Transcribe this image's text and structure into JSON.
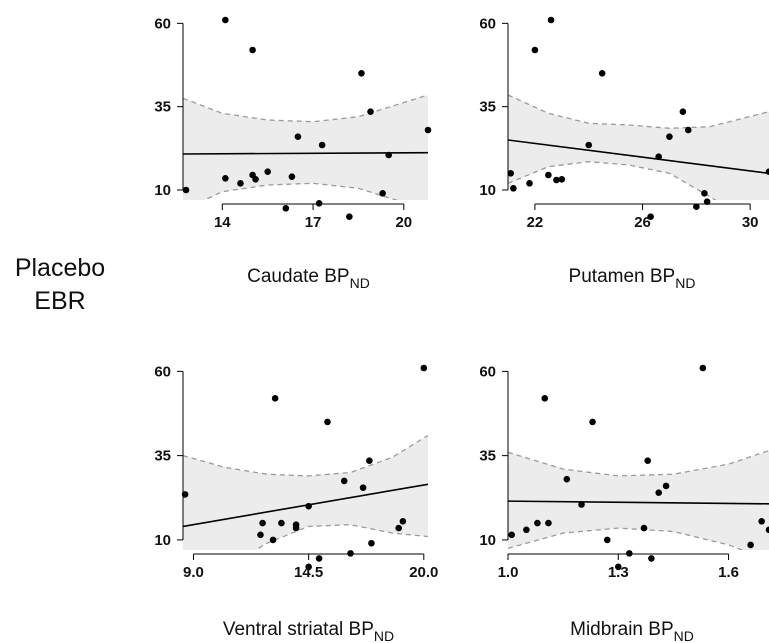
{
  "figure": {
    "y_label_line1": "Placebo",
    "y_label_line2": "EBR",
    "band_color": "#ececec",
    "band_edge_color": "#9a9a9a",
    "point_color": "#000000",
    "line_color": "#000000"
  },
  "chart_data": [
    {
      "type": "scatter",
      "xlabel_main": "Caudate BP",
      "xlabel_sub": "ND",
      "xlim": [
        12.7,
        20.8
      ],
      "ylim": [
        7,
        61
      ],
      "xticks": [
        14,
        17,
        20
      ],
      "yticks": [
        10,
        35,
        60
      ],
      "xtick_labels": [
        "14",
        "17",
        "20"
      ],
      "ytick_labels": [
        "10",
        "35",
        "60"
      ],
      "regression": [
        [
          12.7,
          20.8
        ],
        [
          20.8,
          21.2
        ]
      ],
      "ci_upper": [
        [
          12.7,
          37.5
        ],
        [
          14.0,
          33.0
        ],
        [
          15.5,
          31.0
        ],
        [
          17.0,
          30.5
        ],
        [
          18.5,
          32.0
        ],
        [
          20.8,
          38.5
        ]
      ],
      "ci_lower": [
        [
          12.7,
          4.0
        ],
        [
          14.0,
          9.5
        ],
        [
          15.5,
          11.5
        ],
        [
          17.0,
          12.0
        ],
        [
          18.5,
          10.5
        ],
        [
          20.8,
          4.0
        ]
      ],
      "points": [
        [
          12.8,
          10
        ],
        [
          14.1,
          61
        ],
        [
          14.1,
          13.5
        ],
        [
          14.6,
          12
        ],
        [
          15.0,
          52
        ],
        [
          15.0,
          14.5
        ],
        [
          15.1,
          13.2
        ],
        [
          15.5,
          15.5
        ],
        [
          16.1,
          4.5
        ],
        [
          16.3,
          14
        ],
        [
          16.5,
          26
        ],
        [
          17.2,
          6
        ],
        [
          17.3,
          23.5
        ],
        [
          18.2,
          2
        ],
        [
          18.6,
          45
        ],
        [
          18.9,
          33.5
        ],
        [
          19.3,
          9
        ],
        [
          19.5,
          20.5
        ],
        [
          20.8,
          28
        ]
      ]
    },
    {
      "type": "scatter",
      "xlabel_main": "Putamen BP",
      "xlabel_sub": "ND",
      "xlim": [
        21.0,
        30.7
      ],
      "ylim": [
        7,
        61
      ],
      "xticks": [
        22,
        26,
        30
      ],
      "yticks": [
        10,
        35,
        60
      ],
      "xtick_labels": [
        "22",
        "26",
        "30"
      ],
      "ytick_labels": [
        "10",
        "35",
        "60"
      ],
      "regression": [
        [
          21.0,
          25.0
        ],
        [
          30.7,
          15.0
        ]
      ],
      "ci_upper": [
        [
          21.0,
          38.5
        ],
        [
          22.5,
          33.0
        ],
        [
          24.0,
          30.0
        ],
        [
          25.5,
          29.5
        ],
        [
          27.0,
          28.5
        ],
        [
          28.5,
          29.0
        ],
        [
          30.7,
          33.5
        ]
      ],
      "ci_lower": [
        [
          21.0,
          12.0
        ],
        [
          22.5,
          17.0
        ],
        [
          24.0,
          18.5
        ],
        [
          25.5,
          17.5
        ],
        [
          27.0,
          15.0
        ],
        [
          28.5,
          8.0
        ],
        [
          30.7,
          -3.0
        ]
      ],
      "points": [
        [
          21.1,
          15
        ],
        [
          21.2,
          10.5
        ],
        [
          21.8,
          12
        ],
        [
          22.0,
          52
        ],
        [
          22.5,
          14.5
        ],
        [
          22.6,
          61
        ],
        [
          22.8,
          13
        ],
        [
          23.0,
          13.2
        ],
        [
          24.0,
          23.5
        ],
        [
          24.5,
          45
        ],
        [
          26.3,
          2
        ],
        [
          26.6,
          20
        ],
        [
          27.0,
          26
        ],
        [
          27.5,
          33.5
        ],
        [
          27.7,
          28
        ],
        [
          28.0,
          5
        ],
        [
          28.3,
          9
        ],
        [
          28.4,
          6.5
        ],
        [
          30.7,
          15.5
        ]
      ]
    },
    {
      "type": "scatter",
      "xlabel_main": "Ventral striatal BP",
      "xlabel_sub": "ND",
      "xlim": [
        8.5,
        20.2
      ],
      "ylim": [
        7,
        61
      ],
      "xticks": [
        9.0,
        14.5,
        20.0
      ],
      "yticks": [
        10,
        35,
        60
      ],
      "xtick_labels": [
        "9.0",
        "14.5",
        "20.0"
      ],
      "ytick_labels": [
        "10",
        "35",
        "60"
      ],
      "regression": [
        [
          8.5,
          14.0
        ],
        [
          20.2,
          26.5
        ]
      ],
      "ci_upper": [
        [
          8.5,
          35.0
        ],
        [
          10.5,
          31.5
        ],
        [
          12.5,
          29.5
        ],
        [
          14.5,
          29.0
        ],
        [
          16.5,
          30.0
        ],
        [
          18.5,
          34.5
        ],
        [
          20.2,
          41.0
        ]
      ],
      "ci_lower": [
        [
          8.5,
          -7.0
        ],
        [
          10.5,
          1.5
        ],
        [
          12.5,
          9.0
        ],
        [
          14.5,
          14.0
        ],
        [
          16.5,
          14.5
        ],
        [
          18.5,
          12.0
        ],
        [
          20.2,
          11.0
        ]
      ],
      "points": [
        [
          8.6,
          23.5
        ],
        [
          12.2,
          11.5
        ],
        [
          12.3,
          15
        ],
        [
          12.8,
          10
        ],
        [
          12.9,
          52
        ],
        [
          13.2,
          15
        ],
        [
          13.9,
          14.5
        ],
        [
          13.9,
          13.5
        ],
        [
          14.5,
          20
        ],
        [
          14.5,
          2
        ],
        [
          15.0,
          4.5
        ],
        [
          15.4,
          45
        ],
        [
          16.2,
          27.5
        ],
        [
          16.5,
          6
        ],
        [
          17.1,
          25.5
        ],
        [
          17.4,
          33.5
        ],
        [
          17.5,
          9
        ],
        [
          18.8,
          13.5
        ],
        [
          19.0,
          15.5
        ],
        [
          20.0,
          61
        ]
      ]
    },
    {
      "type": "scatter",
      "xlabel_main": "Midbrain BP",
      "xlabel_sub": "ND",
      "xlim": [
        1.0,
        1.71
      ],
      "ylim": [
        7,
        61
      ],
      "xticks": [
        1.0,
        1.3,
        1.6
      ],
      "yticks": [
        10,
        35,
        60
      ],
      "xtick_labels": [
        "1.0",
        "1.3",
        "1.6"
      ],
      "ytick_labels": [
        "10",
        "35",
        "60"
      ],
      "regression": [
        [
          1.0,
          21.5
        ],
        [
          1.71,
          20.7
        ]
      ],
      "ci_upper": [
        [
          1.0,
          36.0
        ],
        [
          1.15,
          31.0
        ],
        [
          1.3,
          29.0
        ],
        [
          1.45,
          29.5
        ],
        [
          1.6,
          32.5
        ],
        [
          1.71,
          36.5
        ]
      ],
      "ci_lower": [
        [
          1.0,
          7.5
        ],
        [
          1.15,
          12.0
        ],
        [
          1.3,
          13.5
        ],
        [
          1.45,
          12.5
        ],
        [
          1.6,
          8.5
        ],
        [
          1.71,
          4.0
        ]
      ],
      "points": [
        [
          1.01,
          11.5
        ],
        [
          1.05,
          13
        ],
        [
          1.08,
          15
        ],
        [
          1.1,
          52
        ],
        [
          1.11,
          15
        ],
        [
          1.16,
          28
        ],
        [
          1.2,
          20.5
        ],
        [
          1.23,
          45
        ],
        [
          1.27,
          10
        ],
        [
          1.3,
          2
        ],
        [
          1.33,
          6
        ],
        [
          1.37,
          13.5
        ],
        [
          1.38,
          33.5
        ],
        [
          1.39,
          4.5
        ],
        [
          1.41,
          24
        ],
        [
          1.43,
          26
        ],
        [
          1.53,
          61
        ],
        [
          1.66,
          8.5
        ],
        [
          1.69,
          15.5
        ],
        [
          1.71,
          13
        ]
      ]
    }
  ]
}
